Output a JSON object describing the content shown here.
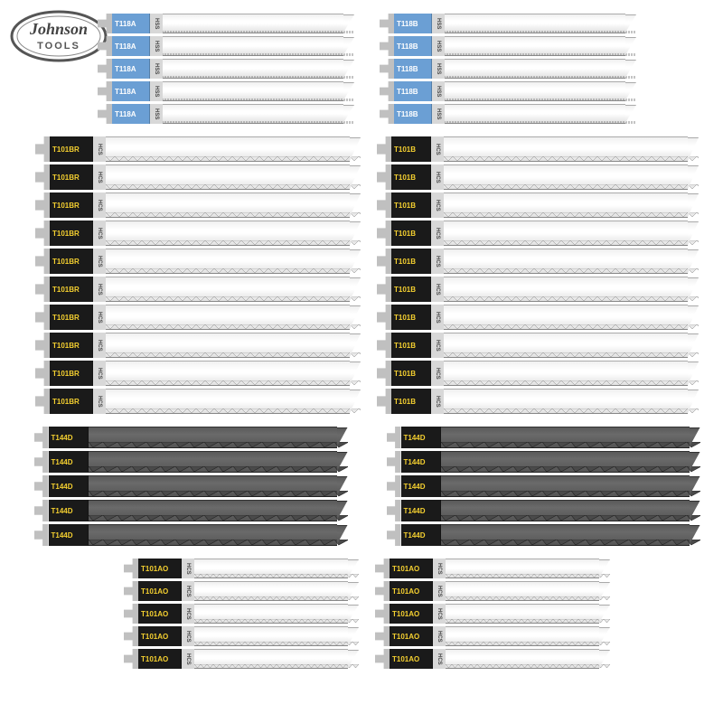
{
  "brand": {
    "top": "Johnson",
    "bottom": "TOOLS"
  },
  "colors": {
    "blue": {
      "bg": "#6b9fd4",
      "text": "#ffffff",
      "mat_bg": "#d8d8d8",
      "mat_text": "#4a4a4a"
    },
    "black_yellow": {
      "bg": "#1a1a1a",
      "text": "#f5d030",
      "mat_bg": "#d8d8d8",
      "mat_text": "#4a4a4a"
    }
  },
  "groups": [
    {
      "row": 0,
      "col": 0,
      "label": "T118A",
      "material": "HSS",
      "scheme": "blue",
      "count": 5,
      "blade_width": 200,
      "height_class": "",
      "tooth_style": "fine",
      "dark_body": false,
      "color_block_w": 42
    },
    {
      "row": 0,
      "col": 1,
      "label": "T118B",
      "material": "HSS",
      "scheme": "blue",
      "count": 5,
      "blade_width": 200,
      "height_class": "",
      "tooth_style": "fine",
      "dark_body": false,
      "color_block_w": 42
    },
    {
      "row": 1,
      "col": 0,
      "label": "T101BR",
      "material": "HCS",
      "scheme": "black_yellow",
      "count": 10,
      "blade_width": 270,
      "height_class": "tall",
      "tooth_style": "tpi10_up",
      "dark_body": false,
      "color_block_w": 48
    },
    {
      "row": 1,
      "col": 1,
      "label": "T101B",
      "material": "HCS",
      "scheme": "black_yellow",
      "count": 10,
      "blade_width": 270,
      "height_class": "tall",
      "tooth_style": "tpi10_dn",
      "dark_body": false,
      "color_block_w": 44
    },
    {
      "row": 2,
      "col": 0,
      "label": "T144D",
      "material": "",
      "scheme": "black_yellow",
      "count": 5,
      "blade_width": 275,
      "height_class": "med",
      "tooth_style": "coarse",
      "dark_body": true,
      "color_block_w": 44
    },
    {
      "row": 2,
      "col": 1,
      "label": "T144D",
      "material": "",
      "scheme": "black_yellow",
      "count": 5,
      "blade_width": 275,
      "height_class": "med",
      "tooth_style": "coarse",
      "dark_body": true,
      "color_block_w": 44
    },
    {
      "row": 3,
      "col": 0,
      "label": "T101AO",
      "material": "HCS",
      "scheme": "black_yellow",
      "count": 5,
      "blade_width": 170,
      "height_class": "",
      "tooth_style": "tpi14",
      "dark_body": false,
      "color_block_w": 48
    },
    {
      "row": 3,
      "col": 1,
      "label": "T101AO",
      "material": "HCS",
      "scheme": "black_yellow",
      "count": 5,
      "blade_width": 170,
      "height_class": "",
      "tooth_style": "tpi14",
      "dark_body": false,
      "color_block_w": 48
    }
  ],
  "row_gaps": [
    40,
    30,
    55,
    30
  ]
}
